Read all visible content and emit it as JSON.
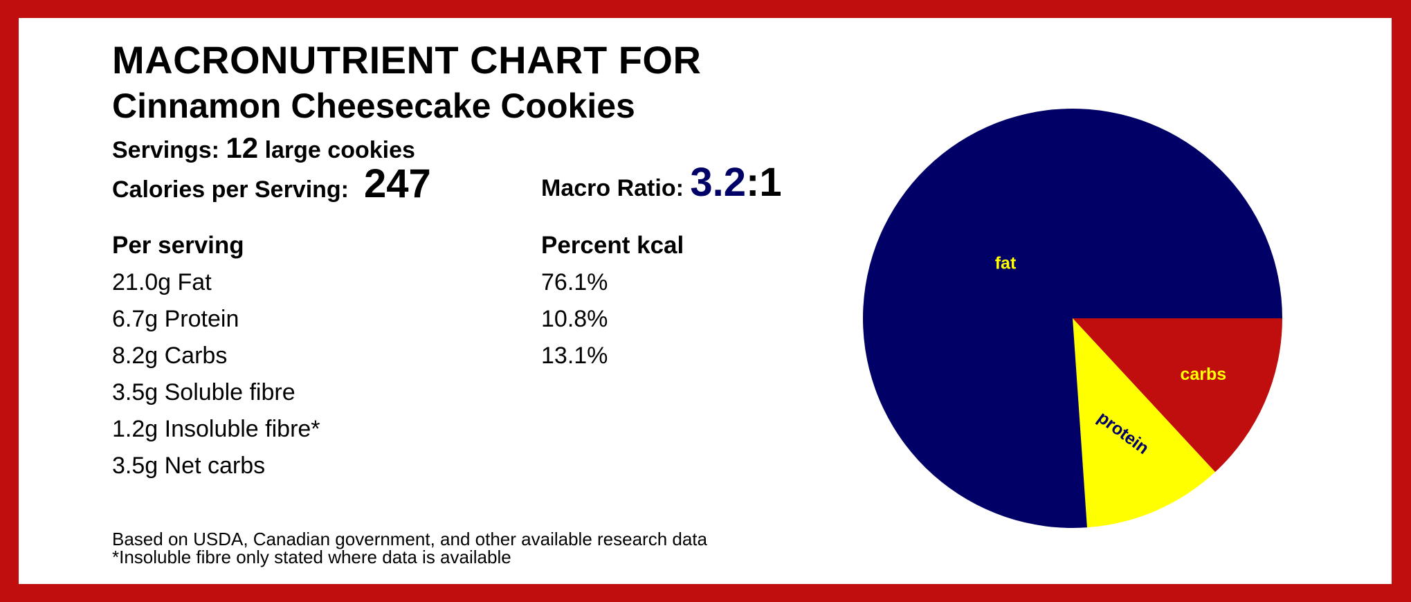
{
  "title": "MACRONUTRIENT CHART FOR",
  "subtitle": "Cinnamon Cheesecake Cookies",
  "servings": {
    "label": "Servings:",
    "count": "12",
    "unit": "large cookies"
  },
  "calories": {
    "label": "Calories per Serving:",
    "value": "247"
  },
  "macro_ratio": {
    "label": "Macro Ratio:",
    "numerator": "3.2",
    "denominator": ":1"
  },
  "per_serving": {
    "header": "Per serving",
    "rows": [
      "21.0g Fat",
      "6.7g Protein",
      "8.2g Carbs",
      "3.5g Soluble fibre",
      "1.2g Insoluble fibre*",
      "3.5g Net carbs"
    ]
  },
  "percent_kcal": {
    "header": "Percent kcal",
    "rows": [
      "76.1%",
      "10.8%",
      "13.1%"
    ]
  },
  "footnotes": [
    "Based on USDA, Canadian government, and other available research data",
    "*Insoluble fibre only stated where data is available"
  ],
  "colors": {
    "border": "#c00d0d",
    "fat": "#000066",
    "protein": "#ffff00",
    "carbs": "#c00d0d",
    "fat_label": "#ffff00",
    "protein_label": "#000066",
    "carbs_label": "#ffff00"
  },
  "chart_data": {
    "type": "pie",
    "categories": [
      "fat",
      "protein",
      "carbs"
    ],
    "values": [
      76.1,
      10.8,
      13.1
    ],
    "title": "",
    "start": "3 o'clock, clockwise order: carbs, protein, fat"
  }
}
